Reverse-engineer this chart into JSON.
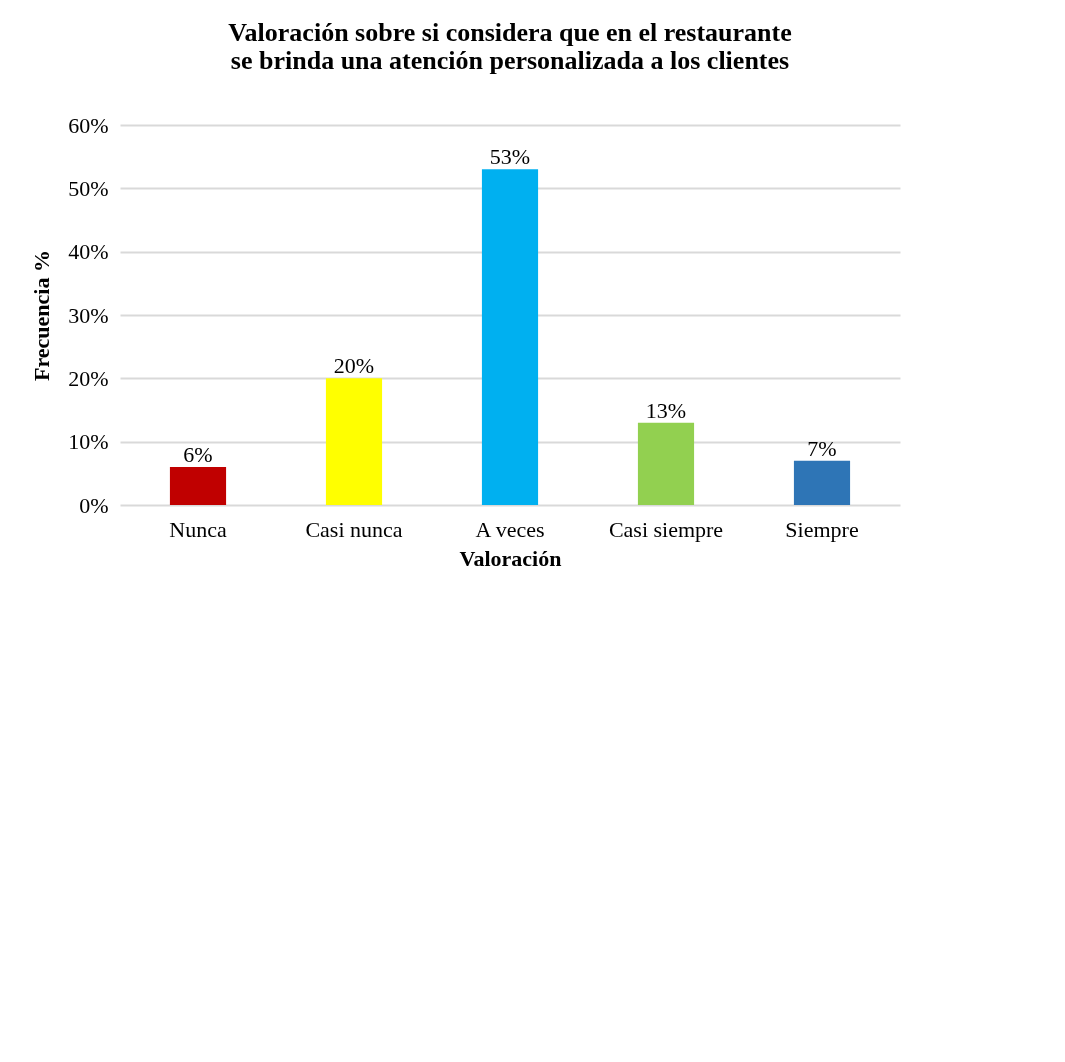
{
  "chart_data": {
    "type": "bar",
    "title": [
      "Valoración sobre si considera que en el restaurante",
      "se brinda una atención personalizada a los clientes"
    ],
    "xlabel": "Valoración",
    "ylabel": "Frecuencia %",
    "categories": [
      "Nunca",
      "Casi nunca",
      "A veces",
      "Casi siempre",
      "Siempre"
    ],
    "values": [
      6,
      20,
      53,
      13,
      7
    ],
    "colors": [
      "#c00000",
      "#ffff00",
      "#00b0f0",
      "#92d050",
      "#2e75b6"
    ],
    "value_labels": [
      "6%",
      "20%",
      "53%",
      "13%",
      "7%"
    ],
    "ylim": [
      0,
      60
    ],
    "yticks": [
      {
        "value": 0,
        "label": "0%"
      },
      {
        "value": 10,
        "label": "10%"
      },
      {
        "value": 20,
        "label": "20%"
      },
      {
        "value": 30,
        "label": "30%"
      },
      {
        "value": 40,
        "label": "40%"
      },
      {
        "value": 50,
        "label": "50%"
      },
      {
        "value": 60,
        "label": "60%"
      }
    ],
    "grid": "y"
  }
}
